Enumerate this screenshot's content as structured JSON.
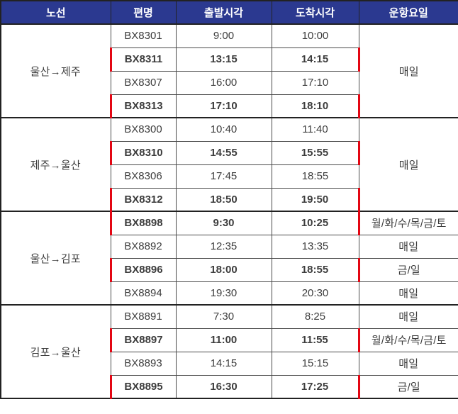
{
  "colors": {
    "header-bg": "#2b3990",
    "header-text": "#ffffff",
    "grid-border": "#4a4a4a",
    "outer-border": "#222222",
    "highlight-red": "#e30613",
    "highlight-text": "#17375d",
    "normal-text": "#3d3d3d",
    "bg": "#ffffff"
  },
  "table": {
    "columns": [
      {
        "key": "route",
        "label": "노선"
      },
      {
        "key": "flight",
        "label": "편명"
      },
      {
        "key": "departure",
        "label": "출발시각"
      },
      {
        "key": "arrival",
        "label": "도착시각"
      },
      {
        "key": "days",
        "label": "운항요일"
      }
    ],
    "groups": [
      {
        "route": "울산→제주",
        "days_merged": "매일",
        "rows": [
          {
            "flight": "BX8301",
            "departure": "9:00",
            "arrival": "10:00",
            "highlighted": false
          },
          {
            "flight": "BX8311",
            "departure": "13:15",
            "arrival": "14:15",
            "highlighted": true
          },
          {
            "flight": "BX8307",
            "departure": "16:00",
            "arrival": "17:10",
            "highlighted": false
          },
          {
            "flight": "BX8313",
            "departure": "17:10",
            "arrival": "18:10",
            "highlighted": true
          }
        ]
      },
      {
        "route": "제주→울산",
        "days_merged": "매일",
        "rows": [
          {
            "flight": "BX8300",
            "departure": "10:40",
            "arrival": "11:40",
            "highlighted": false
          },
          {
            "flight": "BX8310",
            "departure": "14:55",
            "arrival": "15:55",
            "highlighted": true
          },
          {
            "flight": "BX8306",
            "departure": "17:45",
            "arrival": "18:55",
            "highlighted": false
          },
          {
            "flight": "BX8312",
            "departure": "18:50",
            "arrival": "19:50",
            "highlighted": true
          }
        ]
      },
      {
        "route": "울산→김포",
        "days_merged": null,
        "rows": [
          {
            "flight": "BX8898",
            "departure": "9:30",
            "arrival": "10:25",
            "highlighted": true,
            "days": "월/화/수/목/금/토"
          },
          {
            "flight": "BX8892",
            "departure": "12:35",
            "arrival": "13:35",
            "highlighted": false,
            "days": "매일"
          },
          {
            "flight": "BX8896",
            "departure": "18:00",
            "arrival": "18:55",
            "highlighted": true,
            "days": "금/일"
          },
          {
            "flight": "BX8894",
            "departure": "19:30",
            "arrival": "20:30",
            "highlighted": false,
            "days": "매일"
          }
        ]
      },
      {
        "route": "김포→울산",
        "days_merged": null,
        "rows": [
          {
            "flight": "BX8891",
            "departure": "7:30",
            "arrival": "8:25",
            "highlighted": false,
            "days": "매일"
          },
          {
            "flight": "BX8897",
            "departure": "11:00",
            "arrival": "11:55",
            "highlighted": true,
            "days": "월/화/수/목/금/토"
          },
          {
            "flight": "BX8893",
            "departure": "14:15",
            "arrival": "15:15",
            "highlighted": false,
            "days": "매일"
          },
          {
            "flight": "BX8895",
            "departure": "16:30",
            "arrival": "17:25",
            "highlighted": true,
            "days": "금/일"
          }
        ]
      }
    ]
  }
}
